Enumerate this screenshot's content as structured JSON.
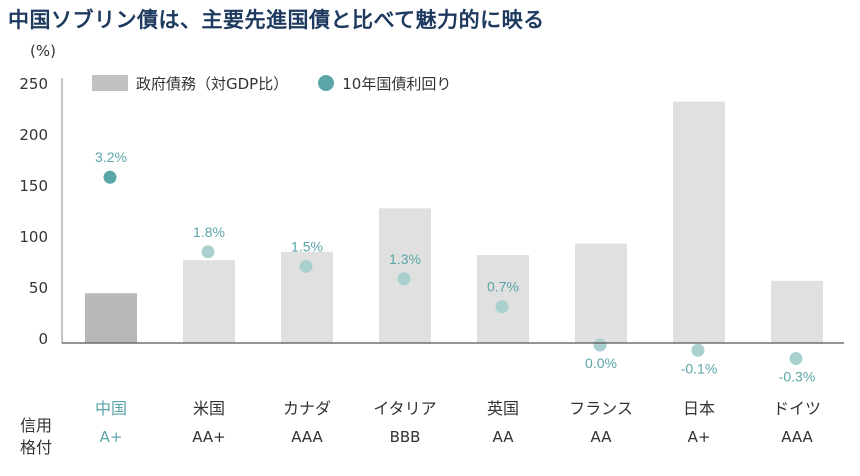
{
  "title": "中国ソブリン債は、主要先進国債と比べて魅力的に映る",
  "unit_label": "(%)",
  "legend": {
    "bar_label": "政府債務（対GDP比）",
    "dot_label": "10年国債利回り"
  },
  "rating_label_line1": "信用",
  "rating_label_line2": "格付",
  "colors": {
    "bar_highlight": "#b8b8b8",
    "bar": "#e0e0e0",
    "dot_highlight": "#5aa5a8",
    "dot": "#a9cfcf",
    "text_accent": "#5aa5a8",
    "title": "#1f3a5f"
  },
  "chart_data": {
    "type": "bar",
    "title": "中国ソブリン債は、主要先進国債と比べて魅力的に映る",
    "ylabel": "(%)",
    "ylim": [
      0,
      250
    ],
    "yticks": [
      0,
      50,
      100,
      150,
      200,
      250
    ],
    "categories": [
      "中国",
      "米国",
      "カナダ",
      "イタリア",
      "英国",
      "フランス",
      "日本",
      "ドイツ"
    ],
    "series": [
      {
        "name": "政府債務（対GDP比）",
        "type": "bar",
        "values": [
          48,
          80,
          88,
          130,
          85,
          96,
          233,
          60
        ]
      },
      {
        "name": "10年国債利回り",
        "type": "scatter",
        "plotted_y": [
          160,
          88,
          74,
          62,
          35,
          -2,
          -7,
          -15
        ],
        "labels": [
          "3.2%",
          "1.8%",
          "1.5%",
          "1.3%",
          "0.7%",
          "0.0%",
          "-0.1%",
          "-0.3%"
        ]
      }
    ],
    "ratings": [
      "A+",
      "AA+",
      "AAA",
      "BBB",
      "AA",
      "AA",
      "A+",
      "AAA"
    ],
    "highlight_index": 0,
    "grid": false
  }
}
